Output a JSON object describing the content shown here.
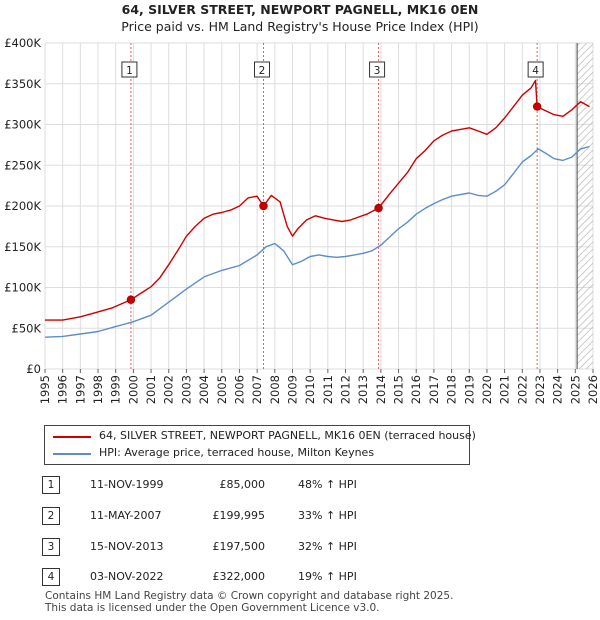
{
  "chart_data": {
    "type": "line",
    "title": "64, SILVER STREET, NEWPORT PAGNELL, MK16 0EN",
    "subtitle": "Price paid vs. HM Land Registry's House Price Index (HPI)",
    "xlim": [
      1995,
      2026
    ],
    "ylim": [
      0,
      400000
    ],
    "x_ticks": [
      "1995",
      "1996",
      "1997",
      "1998",
      "1999",
      "2000",
      "2001",
      "2002",
      "2003",
      "2004",
      "2005",
      "2006",
      "2007",
      "2008",
      "2009",
      "2010",
      "2011",
      "2012",
      "2013",
      "2014",
      "2015",
      "2016",
      "2017",
      "2018",
      "2019",
      "2020",
      "2021",
      "2022",
      "2023",
      "2024",
      "2025",
      "2026"
    ],
    "y_ticks": [
      {
        "value": 0,
        "label": "£0"
      },
      {
        "value": 50000,
        "label": "£50K"
      },
      {
        "value": 100000,
        "label": "£100K"
      },
      {
        "value": 150000,
        "label": "£150K"
      },
      {
        "value": 200000,
        "label": "£200K"
      },
      {
        "value": 250000,
        "label": "£250K"
      },
      {
        "value": 300000,
        "label": "£300K"
      },
      {
        "value": 350000,
        "label": "£350K"
      },
      {
        "value": 400000,
        "label": "£400K"
      }
    ],
    "future_start": 2025.1,
    "series": [
      {
        "name": "64, SILVER STREET, NEWPORT PAGNELL, MK16 0EN (terraced house)",
        "color": "#cc0000",
        "x": [
          1995.0,
          1996.0,
          1997.0,
          1998.0,
          1998.8,
          1999.86,
          2000.5,
          2001.0,
          2001.5,
          2002.0,
          2002.5,
          2003.0,
          2003.5,
          2004.0,
          2004.5,
          2005.0,
          2005.5,
          2006.0,
          2006.5,
          2007.0,
          2007.36,
          2007.8,
          2008.3,
          2008.7,
          2009.0,
          2009.3,
          2009.8,
          2010.3,
          2010.8,
          2011.3,
          2011.8,
          2012.3,
          2012.8,
          2013.2,
          2013.87,
          2014.5,
          2015.0,
          2015.5,
          2016.0,
          2016.5,
          2017.0,
          2017.5,
          2018.0,
          2018.5,
          2019.0,
          2019.5,
          2020.0,
          2020.5,
          2021.0,
          2021.5,
          2022.0,
          2022.5,
          2022.75,
          2022.84,
          2023.2,
          2023.8,
          2024.3,
          2024.8,
          2025.3,
          2025.8
        ],
        "values": [
          60000,
          60000,
          64000,
          70000,
          75000,
          85000,
          94000,
          101000,
          112000,
          128000,
          145000,
          163000,
          175000,
          185000,
          190000,
          192000,
          195000,
          200000,
          210000,
          212000,
          199995,
          213000,
          205000,
          175000,
          163000,
          172000,
          183000,
          188000,
          185000,
          183000,
          181000,
          183000,
          187000,
          190000,
          197500,
          215000,
          228000,
          241000,
          258000,
          268000,
          280000,
          287000,
          292000,
          294000,
          296000,
          292000,
          288000,
          296000,
          308000,
          322000,
          336000,
          345000,
          354000,
          322000,
          318000,
          312000,
          310000,
          318000,
          328000,
          322000
        ]
      },
      {
        "name": "HPI: Average price, terraced house, Milton Keynes",
        "color": "#5b8ec9",
        "x": [
          1995.0,
          1996.0,
          1997.0,
          1998.0,
          1999.0,
          2000.0,
          2001.0,
          2002.0,
          2003.0,
          2004.0,
          2005.0,
          2006.0,
          2007.0,
          2007.5,
          2008.0,
          2008.5,
          2009.0,
          2009.5,
          2010.0,
          2010.5,
          2011.0,
          2011.5,
          2012.0,
          2012.5,
          2013.0,
          2013.5,
          2014.0,
          2014.5,
          2015.0,
          2015.5,
          2016.0,
          2016.5,
          2017.0,
          2017.5,
          2018.0,
          2018.5,
          2019.0,
          2019.5,
          2020.0,
          2020.5,
          2021.0,
          2021.5,
          2022.0,
          2022.5,
          2022.9,
          2023.3,
          2023.8,
          2024.3,
          2024.8,
          2025.3,
          2025.8
        ],
        "values": [
          39000,
          40000,
          43000,
          46000,
          52000,
          58000,
          66000,
          82000,
          98000,
          113000,
          121000,
          127000,
          140000,
          150000,
          154000,
          145000,
          128000,
          132000,
          138000,
          140000,
          138000,
          137000,
          138000,
          140000,
          142000,
          145000,
          152000,
          162000,
          172000,
          180000,
          190000,
          197000,
          203000,
          208000,
          212000,
          214000,
          216000,
          213000,
          212000,
          218000,
          226000,
          240000,
          254000,
          262000,
          270000,
          265000,
          258000,
          256000,
          260000,
          270000,
          273000
        ]
      }
    ],
    "sale_points": [
      {
        "label": "1",
        "x": 1999.86,
        "value": 85000
      },
      {
        "label": "2",
        "x": 2007.36,
        "value": 199995
      },
      {
        "label": "3",
        "x": 2013.87,
        "value": 197500
      },
      {
        "label": "4",
        "x": 2022.84,
        "value": 322000
      }
    ]
  },
  "legend": {
    "property": "64, SILVER STREET, NEWPORT PAGNELL, MK16 0EN (terraced house)",
    "hpi": "HPI: Average price, terraced house, Milton Keynes"
  },
  "sales": [
    {
      "num": "1",
      "date": "11-NOV-1999",
      "price": "£85,000",
      "hpi": "48% ↑ HPI"
    },
    {
      "num": "2",
      "date": "11-MAY-2007",
      "price": "£199,995",
      "hpi": "33% ↑ HPI"
    },
    {
      "num": "3",
      "date": "15-NOV-2013",
      "price": "£197,500",
      "hpi": "32% ↑ HPI"
    },
    {
      "num": "4",
      "date": "03-NOV-2022",
      "price": "£322,000",
      "hpi": "19% ↑ HPI"
    }
  ],
  "footer": {
    "line1": "Contains HM Land Registry data © Crown copyright and database right 2025.",
    "line2": "This data is licensed under the Open Government Licence v3.0."
  },
  "colors": {
    "property": "#cc0000",
    "hpi": "#5b8ec9",
    "grid": "#dddddd",
    "vline": "#e06060"
  }
}
